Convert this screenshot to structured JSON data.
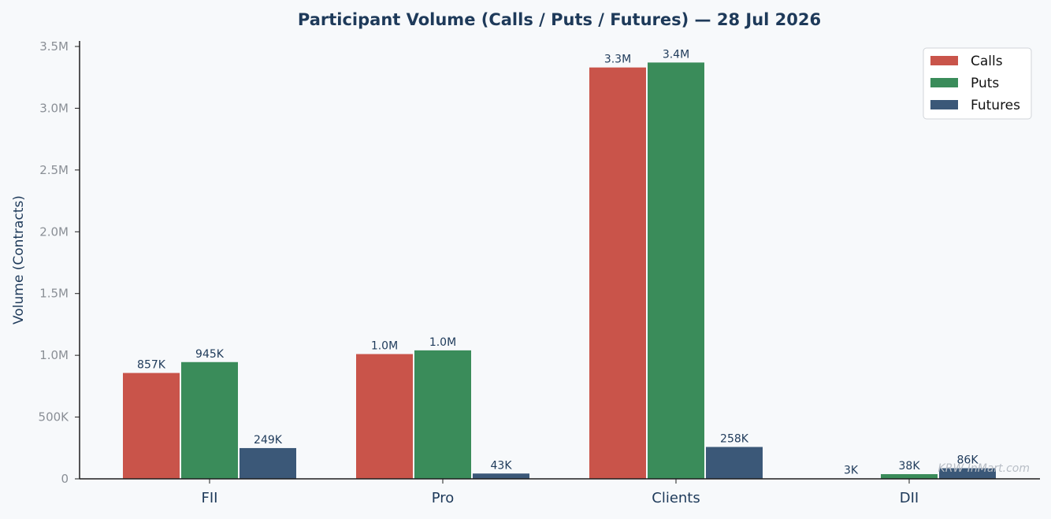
{
  "chart_data": {
    "type": "bar",
    "title": "Participant Volume (Calls / Puts / Futures) — 28 Jul 2026",
    "xlabel": "",
    "ylabel": "Volume (Contracts)",
    "ylim": [
      0,
      3500000
    ],
    "yticks": [
      0,
      500000,
      1000000,
      1500000,
      2000000,
      2500000,
      3000000,
      3500000
    ],
    "ytick_labels": [
      "0",
      "500K",
      "1.0M",
      "1.5M",
      "2.0M",
      "2.5M",
      "3.0M",
      "3.5M"
    ],
    "categories": [
      "FII",
      "Pro",
      "Clients",
      "DII"
    ],
    "series": [
      {
        "name": "Calls",
        "color": "#c9544a",
        "values": [
          857000,
          1010000,
          3330000,
          3000
        ],
        "labels": [
          "857K",
          "1.0M",
          "3.3M",
          "3K"
        ]
      },
      {
        "name": "Puts",
        "color": "#3a8c5a",
        "values": [
          945000,
          1040000,
          3370000,
          38000
        ],
        "labels": [
          "945K",
          "1.0M",
          "3.4M",
          "38K"
        ]
      },
      {
        "name": "Futures",
        "color": "#3b5878",
        "values": [
          249000,
          43000,
          258000,
          86000
        ],
        "labels": [
          "249K",
          "43K",
          "258K",
          "86K"
        ]
      }
    ],
    "legend_position": "top-right",
    "grid": false,
    "watermark": "KRW InMart.com"
  }
}
